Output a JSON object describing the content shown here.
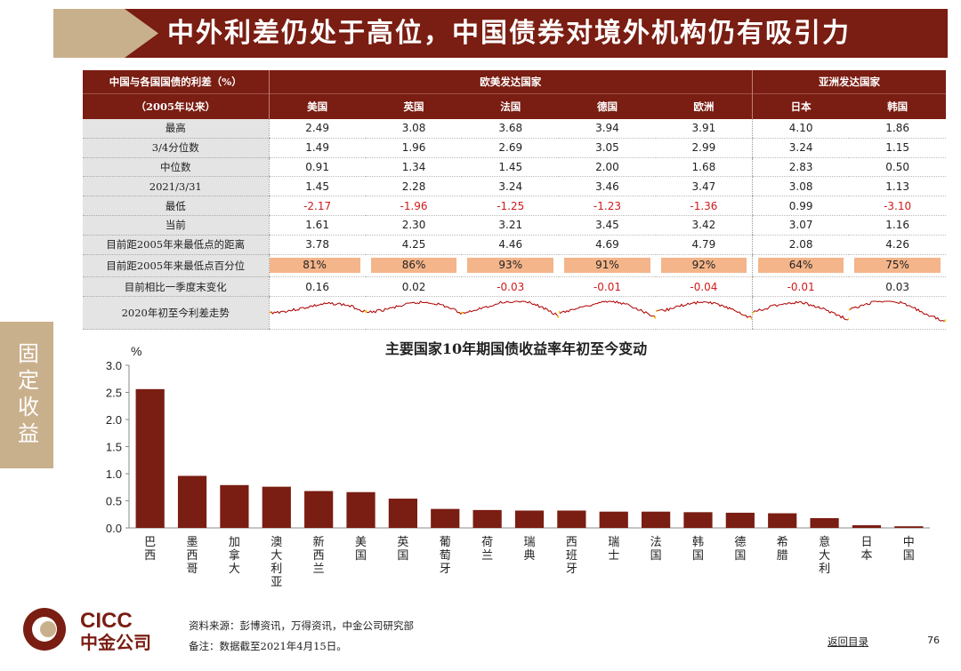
{
  "title": "中外利差仍处于高位，中国债券对境外机构仍有吸引力",
  "side_tab": "固定收益",
  "table": {
    "header_label_1": "中国与各国国债的利差（%）",
    "header_label_2": "（2005年以来）",
    "group_1": "欧美发达国家",
    "group_2": "亚洲发达国家",
    "countries": [
      "美国",
      "英国",
      "法国",
      "德国",
      "欧洲",
      "日本",
      "韩国"
    ],
    "rows": [
      {
        "label": "最高",
        "values": [
          "2.49",
          "3.08",
          "3.68",
          "3.94",
          "3.91",
          "4.10",
          "1.86"
        ]
      },
      {
        "label": "3/4分位数",
        "values": [
          "1.49",
          "1.96",
          "2.69",
          "3.05",
          "2.99",
          "3.24",
          "1.15"
        ]
      },
      {
        "label": "中位数",
        "values": [
          "0.91",
          "1.34",
          "1.45",
          "2.00",
          "1.68",
          "2.83",
          "0.50"
        ]
      },
      {
        "label": "2021/3/31",
        "values": [
          "1.45",
          "2.28",
          "3.24",
          "3.46",
          "3.47",
          "3.08",
          "1.13"
        ]
      },
      {
        "label": "最低",
        "values": [
          "-2.17",
          "-1.96",
          "-1.25",
          "-1.23",
          "-1.36",
          "0.99",
          "-3.10"
        ]
      },
      {
        "label": "当前",
        "values": [
          "1.61",
          "2.30",
          "3.21",
          "3.45",
          "3.42",
          "3.07",
          "1.16"
        ]
      },
      {
        "label": "目前距2005年来最低点的距离",
        "values": [
          "3.78",
          "4.25",
          "4.46",
          "4.69",
          "4.79",
          "2.08",
          "4.26"
        ]
      },
      {
        "label": "目前距2005年来最低点百分位",
        "values": [
          "81%",
          "86%",
          "93%",
          "91%",
          "92%",
          "64%",
          "75%"
        ]
      },
      {
        "label": "目前相比一季度末变化",
        "values": [
          "0.16",
          "0.02",
          "-0.03",
          "-0.01",
          "-0.04",
          "-0.01",
          "0.03"
        ]
      }
    ],
    "spark_label": "2020年初至今利差走势"
  },
  "chart_data": {
    "type": "bar",
    "title": "主要国家10年期国债收益率年初至今变动",
    "ylabel": "%",
    "ylim": [
      0,
      3.0
    ],
    "yticks": [
      "0.0",
      "0.5",
      "1.0",
      "1.5",
      "2.0",
      "2.5",
      "3.0"
    ],
    "categories": [
      "巴西",
      "墨西哥",
      "加拿大",
      "澳大利亚",
      "新西兰",
      "美国",
      "英国",
      "葡萄牙",
      "荷兰",
      "瑞典",
      "西班牙",
      "瑞士",
      "法国",
      "韩国",
      "德国",
      "希腊",
      "意大利",
      "日本",
      "中国"
    ],
    "values": [
      2.56,
      0.96,
      0.79,
      0.76,
      0.68,
      0.66,
      0.54,
      0.35,
      0.33,
      0.32,
      0.32,
      0.3,
      0.3,
      0.29,
      0.28,
      0.27,
      0.18,
      0.05,
      0.03
    ],
    "bar_color": "#7a1d12"
  },
  "footer": {
    "logo_text_en": "CICC",
    "logo_text_cn": "中金公司",
    "source": "资料来源：彭博资讯，万得资讯，中金公司研究部",
    "note": "备注：数据截至2021年4月15日。",
    "back_link": "返回目录",
    "page_number": "76"
  },
  "colors": {
    "brand_dark_red": "#7a1d12",
    "brand_tan": "#c9b08c",
    "highlight_orange": "#f4b58a",
    "negative_red": "#d11a1a",
    "spark_line": "#b00000",
    "spark_marker": "#f2c400"
  }
}
